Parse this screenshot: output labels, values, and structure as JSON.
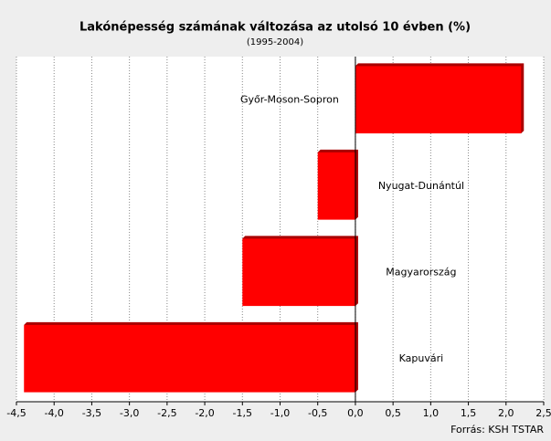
{
  "chart_data": {
    "type": "bar",
    "orientation": "horizontal",
    "title": "Lakónépesség számának változása az utolsó 10 évben (%)",
    "subtitle": "(1995-2004)",
    "source": "Forrás: KSH TSTAR",
    "categories": [
      "Győr-Moson-Sopron",
      "Nyugat-Dunántúl",
      "Magyarország",
      "Kapuvári"
    ],
    "values": [
      2.2,
      -0.5,
      -1.5,
      -4.4
    ],
    "color": "#ff0000",
    "xlim": [
      -4.5,
      2.5
    ],
    "xticks": [
      {
        "value": -4.5,
        "label": "-4,5"
      },
      {
        "value": -4,
        "label": "-4,0"
      },
      {
        "value": -3.5,
        "label": "-3,5"
      },
      {
        "value": -3,
        "label": "-3,0"
      },
      {
        "value": -2.5,
        "label": "-2,5"
      },
      {
        "value": -2,
        "label": "-2,0"
      },
      {
        "value": -1.5,
        "label": "-1,5"
      },
      {
        "value": -1,
        "label": "-1,0"
      },
      {
        "value": -0.5,
        "label": "-0,5"
      },
      {
        "value": 0,
        "label": "0,0"
      },
      {
        "value": 0.5,
        "label": "0,5"
      },
      {
        "value": 1,
        "label": "1,0"
      },
      {
        "value": 1.5,
        "label": "1,5"
      },
      {
        "value": 2,
        "label": "2,0"
      },
      {
        "value": 2.5,
        "label": "2,5"
      }
    ],
    "grid": true
  }
}
